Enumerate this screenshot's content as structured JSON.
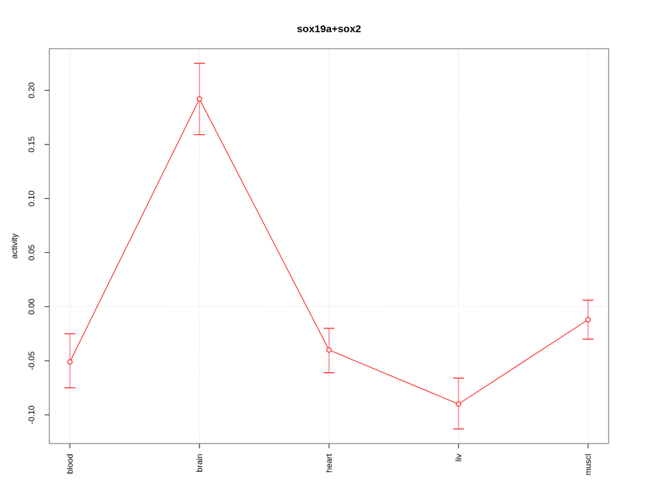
{
  "title": "sox19a+sox2",
  "chart_data": {
    "type": "line",
    "title": "sox19a+sox2",
    "xlabel": "",
    "ylabel": "activity",
    "categories": [
      "blood",
      "brain",
      "heart",
      "liv",
      "muscl"
    ],
    "series": [
      {
        "name": "activity",
        "values": [
          -0.051,
          0.192,
          -0.04,
          -0.09,
          -0.012
        ],
        "error_upper": [
          -0.025,
          0.225,
          -0.02,
          -0.066,
          0.006
        ],
        "error_lower": [
          -0.075,
          0.159,
          -0.061,
          -0.113,
          -0.03
        ]
      }
    ],
    "ylim": [
      -0.1265,
      0.2385
    ],
    "yticks": [
      -0.1,
      -0.05,
      0.0,
      0.05,
      0.1,
      0.15,
      0.2
    ],
    "ytick_labels": [
      "-0.10",
      "-0.05",
      "0.00",
      "0.05",
      "0.10",
      "0.15",
      "0.20"
    ],
    "grid": "dotted vertical line at each category; dotted horizontal line at y=0",
    "legend": "none",
    "marker": "open-circle",
    "colors": {
      "line": "#ff1a1a",
      "error_stem": "rgba(255,26,26,0.55)",
      "grid": "#d6d6d6",
      "box": "#7d7d7d",
      "tick": "#3a3a3a",
      "text": "#000000",
      "background": "#ffffff"
    }
  }
}
